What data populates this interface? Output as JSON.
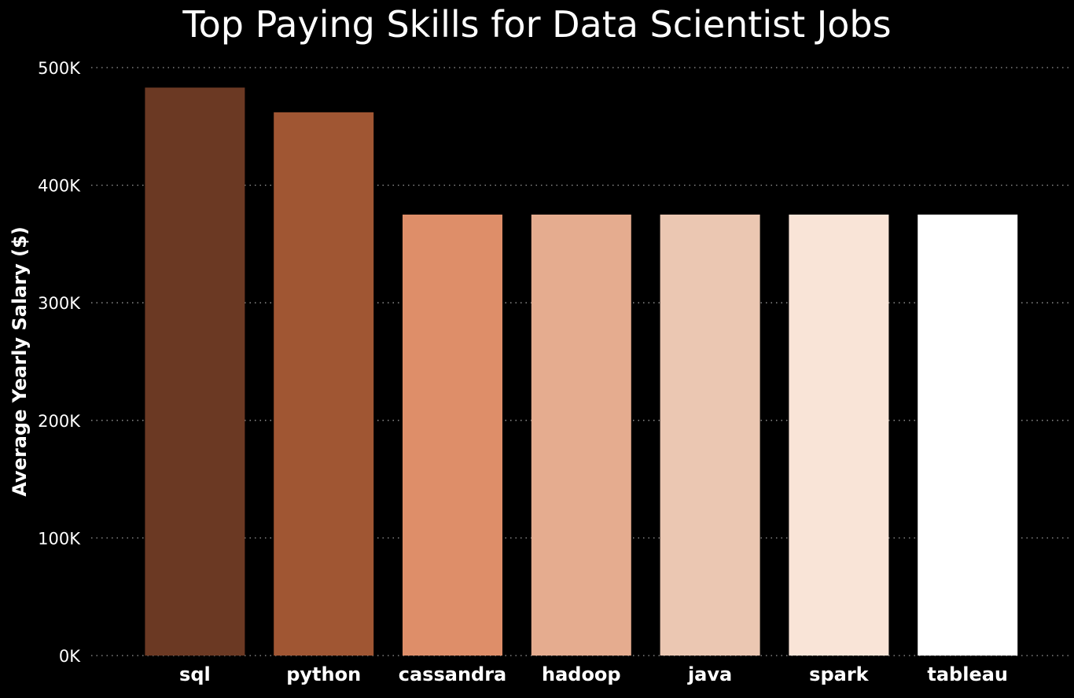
{
  "chart_data": {
    "type": "bar",
    "title": "Top Paying Skills for Data Scientist Jobs",
    "xlabel": "",
    "ylabel": "Average Yearly Salary ($)",
    "categories": [
      "sql",
      "python",
      "cassandra",
      "hadoop",
      "java",
      "spark",
      "tableau"
    ],
    "values": [
      483000,
      462000,
      375000,
      375000,
      375000,
      375000,
      375000
    ],
    "colors": [
      "#6b3923",
      "#a05633",
      "#de8e69",
      "#e5ac8f",
      "#ebc7b2",
      "#f9e4d7",
      "#ffffff"
    ],
    "ylim": [
      0,
      500000
    ],
    "yticks": [
      0,
      100000,
      200000,
      300000,
      400000,
      500000
    ],
    "ytick_labels": [
      "0K",
      "100K",
      "200K",
      "300K",
      "400K",
      "500K"
    ],
    "grid": true,
    "grid_axis": "y",
    "legend": false,
    "background": "#000000"
  }
}
